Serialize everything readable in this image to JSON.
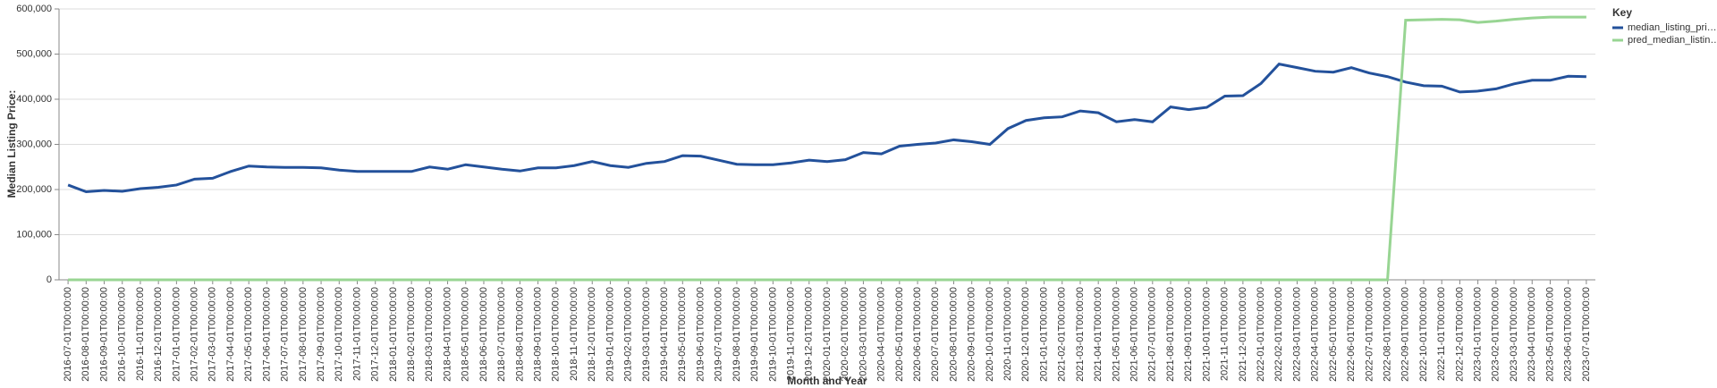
{
  "chart_data": {
    "type": "line",
    "y_label": "Median Listing Price:",
    "x_label": "Month and Year",
    "legend_title": "Key",
    "legend": "right",
    "grid": true,
    "categories": [
      "2016-07-01T00:00:00",
      "2016-08-01T00:00:00",
      "2016-09-01T00:00:00",
      "2016-10-01T00:00:00",
      "2016-11-01T00:00:00",
      "2016-12-01T00:00:00",
      "2017-01-01T00:00:00",
      "2017-02-01T00:00:00",
      "2017-03-01T00:00:00",
      "2017-04-01T00:00:00",
      "2017-05-01T00:00:00",
      "2017-06-01T00:00:00",
      "2017-07-01T00:00:00",
      "2017-08-01T00:00:00",
      "2017-09-01T00:00:00",
      "2017-10-01T00:00:00",
      "2017-11-01T00:00:00",
      "2017-12-01T00:00:00",
      "2018-01-01T00:00:00",
      "2018-02-01T00:00:00",
      "2018-03-01T00:00:00",
      "2018-04-01T00:00:00",
      "2018-05-01T00:00:00",
      "2018-06-01T00:00:00",
      "2018-07-01T00:00:00",
      "2018-08-01T00:00:00",
      "2018-09-01T00:00:00",
      "2018-10-01T00:00:00",
      "2018-11-01T00:00:00",
      "2018-12-01T00:00:00",
      "2019-01-01T00:00:00",
      "2019-02-01T00:00:00",
      "2019-03-01T00:00:00",
      "2019-04-01T00:00:00",
      "2019-05-01T00:00:00",
      "2019-06-01T00:00:00",
      "2019-07-01T00:00:00",
      "2019-08-01T00:00:00",
      "2019-09-01T00:00:00",
      "2019-10-01T00:00:00",
      "2019-11-01T00:00:00",
      "2019-12-01T00:00:00",
      "2020-01-01T00:00:00",
      "2020-02-01T00:00:00",
      "2020-03-01T00:00:00",
      "2020-04-01T00:00:00",
      "2020-05-01T00:00:00",
      "2020-06-01T00:00:00",
      "2020-07-01T00:00:00",
      "2020-08-01T00:00:00",
      "2020-09-01T00:00:00",
      "2020-10-01T00:00:00",
      "2020-11-01T00:00:00",
      "2020-12-01T00:00:00",
      "2021-01-01T00:00:00",
      "2021-02-01T00:00:00",
      "2021-03-01T00:00:00",
      "2021-04-01T00:00:00",
      "2021-05-01T00:00:00",
      "2021-06-01T00:00:00",
      "2021-07-01T00:00:00",
      "2021-08-01T00:00:00",
      "2021-09-01T00:00:00",
      "2021-10-01T00:00:00",
      "2021-11-01T00:00:00",
      "2021-12-01T00:00:00",
      "2022-01-01T00:00:00",
      "2022-02-01T00:00:00",
      "2022-03-01T00:00:00",
      "2022-04-01T00:00:00",
      "2022-05-01T00:00:00",
      "2022-06-01T00:00:00",
      "2022-07-01T00:00:00",
      "2022-08-01T00:00:00",
      "2022-09-01T00:00:00",
      "2022-10-01T00:00:00",
      "2022-11-01T00:00:00",
      "2022-12-01T00:00:00",
      "2023-01-01T00:00:00",
      "2023-02-01T00:00:00",
      "2023-03-01T00:00:00",
      "2023-04-01T00:00:00",
      "2023-05-01T00:00:00",
      "2023-06-01T00:00:00",
      "2023-07-01T00:00:00"
    ],
    "series": [
      {
        "name": "median_listing_pri…",
        "color": "#23519b",
        "values": [
          210000,
          195000,
          198000,
          196000,
          202000,
          205000,
          210000,
          223000,
          225000,
          240000,
          252000,
          250000,
          249000,
          249000,
          248000,
          243000,
          240000,
          240000,
          240000,
          240000,
          250000,
          245000,
          255000,
          250000,
          245000,
          241000,
          248000,
          248000,
          253000,
          262000,
          253000,
          249000,
          258000,
          262000,
          275000,
          274000,
          265000,
          256000,
          255000,
          255000,
          259000,
          265000,
          262000,
          266000,
          282000,
          279000,
          296000,
          300000,
          303000,
          310000,
          306000,
          300000,
          335000,
          353000,
          359000,
          361000,
          374000,
          370000,
          350000,
          355000,
          350000,
          383000,
          377000,
          382000,
          407000,
          408000,
          435000,
          478000,
          470000,
          462000,
          460000,
          470000,
          458000,
          450000,
          438000,
          430000,
          429000,
          416000,
          418000,
          423000,
          434000,
          442000,
          442000,
          451000,
          450000
        ]
      },
      {
        "name": "pred_median_listin…",
        "color": "#98d593",
        "values": [
          0,
          0,
          0,
          0,
          0,
          0,
          0,
          0,
          0,
          0,
          0,
          0,
          0,
          0,
          0,
          0,
          0,
          0,
          0,
          0,
          0,
          0,
          0,
          0,
          0,
          0,
          0,
          0,
          0,
          0,
          0,
          0,
          0,
          0,
          0,
          0,
          0,
          0,
          0,
          0,
          0,
          0,
          0,
          0,
          0,
          0,
          0,
          0,
          0,
          0,
          0,
          0,
          0,
          0,
          0,
          0,
          0,
          0,
          0,
          0,
          0,
          0,
          0,
          0,
          0,
          0,
          0,
          0,
          0,
          0,
          0,
          0,
          0,
          0,
          575000,
          576000,
          577000,
          576000,
          570000,
          573000,
          577000,
          580000,
          582000,
          582000,
          582000
        ]
      }
    ],
    "ylim": [
      0,
      600000
    ],
    "yticks": [
      0,
      {
        "value": 100000,
        "label": "100,000"
      },
      {
        "value": 200000,
        "label": "200,000"
      },
      {
        "value": 300000,
        "label": "300,000"
      },
      {
        "value": 400000,
        "label": "400,000"
      },
      {
        "value": 500000,
        "label": "500,000"
      },
      {
        "value": 600000,
        "label": "600,000"
      }
    ]
  }
}
